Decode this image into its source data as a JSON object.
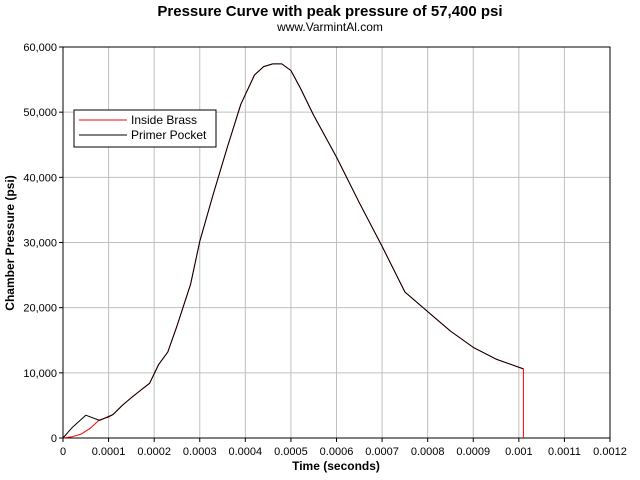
{
  "chart_data": {
    "type": "line",
    "title": "Pressure Curve with peak pressure of 57,400 psi",
    "subtitle": "www.VarmintAl.com",
    "xlabel": "Time (seconds)",
    "ylabel": "Chamber Pressure (psi)",
    "xlim": [
      0,
      0.0012
    ],
    "ylim": [
      0,
      60000
    ],
    "x_ticks": [
      0,
      0.0001,
      0.0002,
      0.0003,
      0.0004,
      0.0005,
      0.0006,
      0.0007,
      0.0008,
      0.0009,
      0.001,
      0.0011,
      0.0012
    ],
    "x_tick_labels": [
      "0",
      "0.0001",
      "0.0002",
      "0.0003",
      "0.0004",
      "0.0005",
      "0.0006",
      "0.0007",
      "0.0008",
      "0.0009",
      "0.001",
      "0.0011",
      "0.0012"
    ],
    "y_ticks": [
      0,
      10000,
      20000,
      30000,
      40000,
      50000,
      60000
    ],
    "y_tick_labels": [
      "0",
      "10,000",
      "20,000",
      "30,000",
      "40,000",
      "50,000",
      "60,000"
    ],
    "grid": true,
    "legend_position": "top-left",
    "series": [
      {
        "name": "Inside Brass",
        "color": "#ff0000",
        "x": [
          0,
          2e-05,
          4e-05,
          6e-05,
          8e-05,
          0.0001,
          0.00011,
          0.00013,
          0.00015,
          0.00017,
          0.00019,
          0.00021,
          0.00023,
          0.00025,
          0.00028,
          0.0003,
          0.00033,
          0.00036,
          0.00039,
          0.00042,
          0.00044,
          0.00046,
          0.00048,
          0.0005,
          0.00052,
          0.00055,
          0.0006,
          0.00065,
          0.0007,
          0.00075,
          0.0008,
          0.00085,
          0.0009,
          0.00095,
          0.00101,
          0.00101
        ],
        "y": [
          0,
          200,
          600,
          1500,
          2800,
          3200,
          3600,
          5000,
          6200,
          7300,
          8400,
          11300,
          13200,
          17200,
          23600,
          30200,
          37500,
          44500,
          51200,
          55700,
          57000,
          57400,
          57400,
          56400,
          53800,
          49500,
          43100,
          36100,
          29400,
          22400,
          19400,
          16400,
          13900,
          12100,
          10600,
          0
        ]
      },
      {
        "name": "Primer Pocket",
        "color": "#000000",
        "x": [
          0,
          2e-05,
          5e-05,
          8e-05,
          0.0001,
          0.00011,
          0.00013,
          0.00015,
          0.00017,
          0.00019,
          0.00021,
          0.00023,
          0.00025,
          0.00028,
          0.0003,
          0.00033,
          0.00036,
          0.00039,
          0.00042,
          0.00044,
          0.00046,
          0.00048,
          0.0005,
          0.00052,
          0.00055,
          0.0006,
          0.00065,
          0.0007,
          0.00075,
          0.0008,
          0.00085,
          0.0009,
          0.00095,
          0.00101
        ],
        "y": [
          0,
          1600,
          3500,
          2700,
          3300,
          3600,
          5000,
          6200,
          7300,
          8400,
          11300,
          13200,
          17200,
          23600,
          30200,
          37500,
          44500,
          51200,
          55700,
          57000,
          57400,
          57400,
          56400,
          53800,
          49500,
          43100,
          36100,
          29400,
          22400,
          19400,
          16400,
          13900,
          12100,
          10600
        ]
      }
    ]
  }
}
